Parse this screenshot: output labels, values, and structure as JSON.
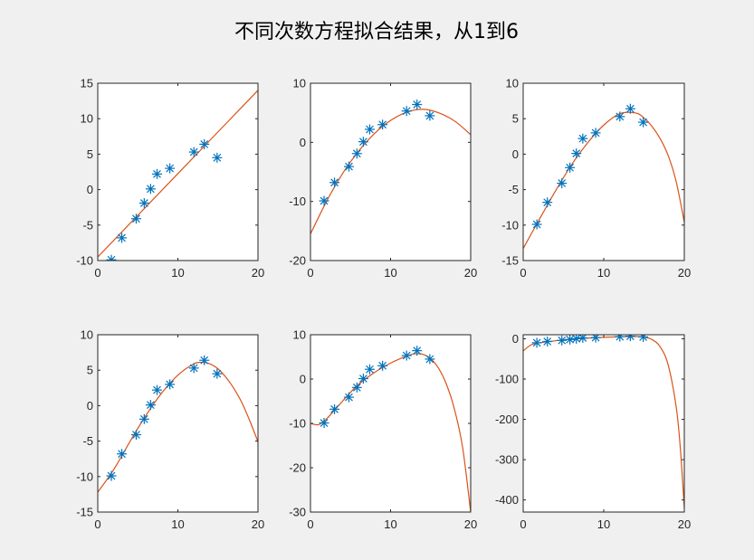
{
  "title": "不同次数方程拟合结果，从1到6",
  "colors": {
    "background": "#f0f0f0",
    "axes_background": "#ffffff",
    "axis": "#262626",
    "points": "#0072bd",
    "fit": "#d95319"
  },
  "chart_data": [
    {
      "type": "scatter",
      "degree": 1,
      "xlim": [
        0,
        20
      ],
      "ylim": [
        -10,
        15
      ],
      "xticks": [
        0,
        10,
        20
      ],
      "yticks": [
        -10,
        -5,
        0,
        5,
        10,
        15
      ],
      "points": {
        "marker": "asterisk",
        "x": [
          1.7,
          3.0,
          4.8,
          5.8,
          6.6,
          7.4,
          9.0,
          12.0,
          13.3,
          14.9
        ],
        "y": [
          -9.9,
          -6.8,
          -4.1,
          -1.9,
          0.1,
          2.2,
          3.0,
          5.3,
          6.4,
          4.5
        ]
      },
      "fit": {
        "line": "curve",
        "x": [
          0,
          20
        ],
        "y": [
          -9.5,
          14.0
        ]
      }
    },
    {
      "type": "scatter",
      "degree": 2,
      "xlim": [
        0,
        20
      ],
      "ylim": [
        -20,
        10
      ],
      "xticks": [
        0,
        10,
        20
      ],
      "yticks": [
        -20,
        -10,
        0,
        10
      ],
      "points": {
        "marker": "asterisk",
        "x": [
          1.7,
          3.0,
          4.8,
          5.8,
          6.6,
          7.4,
          9.0,
          12.0,
          13.3,
          14.9
        ],
        "y": [
          -9.9,
          -6.8,
          -4.1,
          -1.9,
          0.1,
          2.2,
          3.0,
          5.3,
          6.4,
          4.5
        ]
      },
      "fit": {
        "line": "curve",
        "x": [
          0,
          2,
          4,
          6,
          8,
          10,
          12,
          14,
          16,
          18,
          20
        ],
        "y": [
          -15.5,
          -10.0,
          -5.3,
          -1.5,
          1.5,
          3.7,
          5.1,
          5.6,
          5.0,
          3.6,
          1.3
        ]
      }
    },
    {
      "type": "scatter",
      "degree": 3,
      "xlim": [
        0,
        20
      ],
      "ylim": [
        -15,
        10
      ],
      "xticks": [
        0,
        10,
        20
      ],
      "yticks": [
        -15,
        -10,
        -5,
        0,
        5,
        10
      ],
      "points": {
        "marker": "asterisk",
        "x": [
          1.7,
          3.0,
          4.8,
          5.8,
          6.6,
          7.4,
          9.0,
          12.0,
          13.3,
          14.9
        ],
        "y": [
          -9.9,
          -6.8,
          -4.1,
          -1.9,
          0.1,
          2.2,
          3.0,
          5.3,
          6.4,
          4.5
        ]
      },
      "fit": {
        "line": "curve",
        "x": [
          0,
          2,
          4,
          6,
          8,
          10,
          12,
          14,
          15,
          16,
          17,
          18,
          19,
          20
        ],
        "y": [
          -13.3,
          -9.2,
          -5.2,
          -1.5,
          1.6,
          4.1,
          5.7,
          5.8,
          5.1,
          3.9,
          2.2,
          -0.2,
          -3.9,
          -9.6
        ]
      }
    },
    {
      "type": "scatter",
      "degree": 4,
      "xlim": [
        0,
        20
      ],
      "ylim": [
        -15,
        10
      ],
      "xticks": [
        0,
        10,
        20
      ],
      "yticks": [
        -15,
        -10,
        -5,
        0,
        5,
        10
      ],
      "points": {
        "marker": "asterisk",
        "x": [
          1.7,
          3.0,
          4.8,
          5.8,
          6.6,
          7.4,
          9.0,
          12.0,
          13.3,
          14.9
        ],
        "y": [
          -9.9,
          -6.8,
          -4.1,
          -1.9,
          0.1,
          2.2,
          3.0,
          5.3,
          6.4,
          4.5
        ]
      },
      "fit": {
        "line": "curve",
        "x": [
          0,
          2,
          4,
          6,
          8,
          10,
          12,
          13,
          14,
          15,
          16,
          17,
          18,
          19,
          20
        ],
        "y": [
          -12.2,
          -9.0,
          -5.1,
          -1.4,
          1.8,
          4.3,
          5.9,
          6.1,
          5.9,
          5.2,
          4.0,
          2.4,
          0.4,
          -2.2,
          -5.1
        ]
      }
    },
    {
      "type": "scatter",
      "degree": 5,
      "xlim": [
        0,
        20
      ],
      "ylim": [
        -30,
        10
      ],
      "xticks": [
        0,
        10,
        20
      ],
      "yticks": [
        -30,
        -20,
        -10,
        0,
        10
      ],
      "points": {
        "marker": "asterisk",
        "x": [
          1.7,
          3.0,
          4.8,
          5.8,
          6.6,
          7.4,
          9.0,
          12.0,
          13.3,
          14.9
        ],
        "y": [
          -9.9,
          -6.8,
          -4.1,
          -1.9,
          0.1,
          2.2,
          3.0,
          5.3,
          6.4,
          4.5
        ]
      },
      "fit": {
        "line": "curve",
        "x": [
          0,
          1,
          2,
          3,
          4,
          5,
          6,
          8,
          10,
          12,
          13,
          14,
          15,
          16,
          17,
          18,
          19,
          20
        ],
        "y": [
          -10.0,
          -10.3,
          -9.0,
          -7.0,
          -5.0,
          -3.0,
          -1.2,
          1.5,
          3.6,
          5.2,
          5.7,
          5.6,
          4.6,
          2.4,
          -1.3,
          -7.0,
          -15.5,
          -30.0
        ]
      }
    },
    {
      "type": "scatter",
      "degree": 6,
      "xlim": [
        0,
        20
      ],
      "ylim": [
        -430,
        10
      ],
      "xticks": [
        0,
        10,
        20
      ],
      "yticks": [
        -400,
        -300,
        -200,
        -100,
        0
      ],
      "points": {
        "marker": "asterisk",
        "x": [
          1.7,
          3.0,
          4.8,
          5.8,
          6.6,
          7.4,
          9.0,
          12.0,
          13.3,
          14.9
        ],
        "y": [
          -9.9,
          -6.8,
          -4.1,
          -1.9,
          0.1,
          2.2,
          3.0,
          5.3,
          6.4,
          4.5
        ]
      },
      "fit": {
        "line": "curve",
        "x": [
          0,
          1,
          2,
          4,
          6,
          8,
          10,
          12,
          14,
          15,
          16,
          17,
          18,
          19,
          19.5,
          20
        ],
        "y": [
          -30,
          -15,
          -10,
          -5,
          -1,
          1.5,
          3.5,
          5,
          5.5,
          4,
          -2,
          -20,
          -65,
          -170,
          -270,
          -420
        ]
      }
    }
  ]
}
